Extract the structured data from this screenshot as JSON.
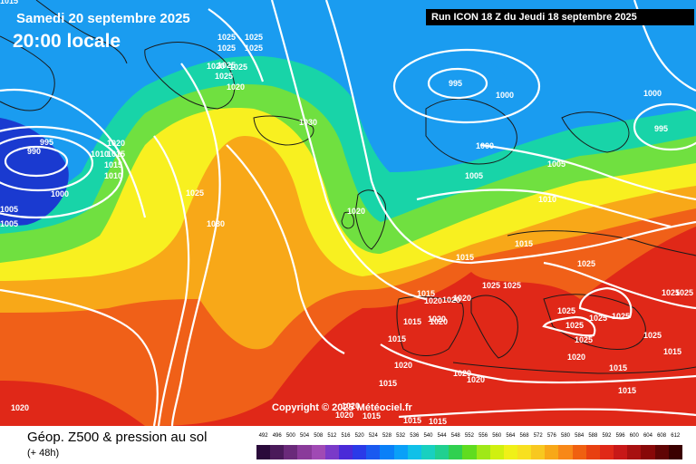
{
  "header": {
    "date": "Samedi 20 septembre 2025",
    "local_time": "20:00 locale",
    "run": "Run ICON 18 Z du Jeudi 18 septembre 2025"
  },
  "footer": {
    "copyright": "Copyright © 2025 Météociel.fr",
    "product": "Géop. Z500 & pression au sol",
    "lead_time": "(+ 48h)"
  },
  "scale": {
    "labels": [
      "492",
      "496",
      "500",
      "504",
      "508",
      "512",
      "516",
      "520",
      "524",
      "528",
      "532",
      "536",
      "540",
      "544",
      "548",
      "552",
      "556",
      "560",
      "564",
      "568",
      "572",
      "576",
      "580",
      "584",
      "588",
      "592",
      "596",
      "600",
      "604",
      "608",
      "612"
    ],
    "colors": [
      "#2a0a3a",
      "#4a1a5a",
      "#6a2a7a",
      "#8a3a9a",
      "#a04ab4",
      "#7a3ac8",
      "#4a2ad8",
      "#2a3ae8",
      "#1a5af0",
      "#0a80f8",
      "#0aa0f8",
      "#10c0e8",
      "#18d0c0",
      "#20d090",
      "#30d050",
      "#60dc20",
      "#a0e818",
      "#d0f010",
      "#f0f018",
      "#f8e020",
      "#f8c820",
      "#f8a818",
      "#f88818",
      "#f06010",
      "#e84010",
      "#e02818",
      "#c81818",
      "#a81010",
      "#880808",
      "#600404",
      "#3a0000"
    ]
  },
  "map": {
    "pressure_labels": [
      "1025",
      "1025",
      "1025",
      "1025",
      "1025",
      "1020",
      "1025",
      "1020",
      "995",
      "990",
      "1020",
      "1015",
      "1010",
      "1015",
      "1010",
      "1000",
      "1005",
      "1005",
      "1025",
      "1030",
      "1030",
      "1025",
      "1020",
      "995",
      "1000",
      "1000",
      "1000",
      "995",
      "1005",
      "1005",
      "1010",
      "1020",
      "1015",
      "1015",
      "1025",
      "1025",
      "1020",
      "1015",
      "1020",
      "1015",
      "1020",
      "1015",
      "1020",
      "1020",
      "1025",
      "1025",
      "1025",
      "1025",
      "1025",
      "1025",
      "1025",
      "1020",
      "1015",
      "1015",
      "1025",
      "1015",
      "1020",
      "1015",
      "1020",
      "1020",
      "1020",
      "1015",
      "1020",
      "1015",
      "1015",
      "1015",
      "1025"
    ],
    "colors": {
      "deep_low": "#1a3ad0",
      "low": "#1a9cf0",
      "mid_low": "#18d4a8",
      "mid": "#70e040",
      "mid_high": "#f8f020",
      "high": "#f8a818",
      "very_high": "#f06018",
      "extreme": "#e02818",
      "isobar": "#ffffff",
      "coast": "#1a1a1a"
    }
  }
}
